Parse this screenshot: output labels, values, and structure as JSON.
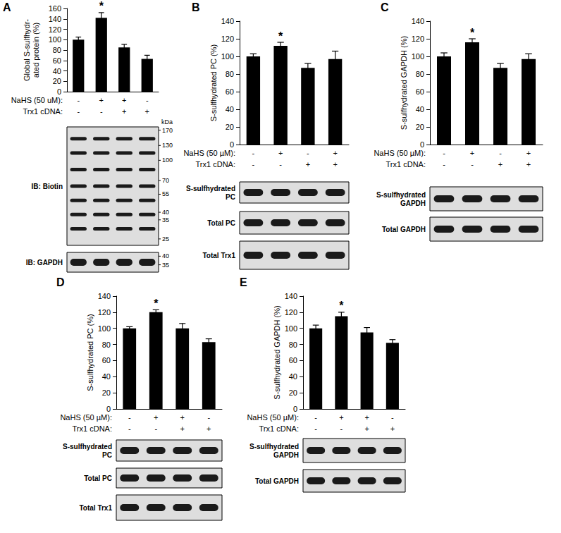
{
  "chart_data": [
    {
      "type": "bar",
      "panel_label": "A",
      "ylabel": "Global S-sulfhydr-\nated protein (%)",
      "categories": [
        null,
        null,
        null,
        null
      ],
      "values": [
        100,
        142,
        85,
        63
      ],
      "errors": [
        5,
        10,
        6,
        7
      ],
      "significance": [
        null,
        "*",
        null,
        null
      ],
      "color": "#000000",
      "ylim": [
        0,
        160
      ],
      "yticks": [
        0,
        20,
        40,
        60,
        80,
        100,
        120,
        140,
        160
      ],
      "grid": false,
      "tick_labels": "y",
      "treatments": [
        {
          "label": "NaHS (50 uM):",
          "values": [
            "-",
            "+",
            "+",
            "-"
          ]
        },
        {
          "label": "Trx1 cDNA:",
          "values": [
            "-",
            "-",
            "+",
            "+"
          ]
        }
      ],
      "ladder_unit": "kDa",
      "blots": [
        {
          "label": "IB: Biotin",
          "ladder": [
            170,
            130,
            100,
            70,
            55,
            40,
            35,
            25
          ]
        },
        {
          "label": "IB: GAPDH",
          "ladder": [
            40,
            35
          ]
        }
      ]
    },
    {
      "type": "bar",
      "panel_label": "B",
      "ylabel": "S-sulfhydrated PC (%)",
      "categories": [
        null,
        null,
        null,
        null
      ],
      "values": [
        100,
        112,
        87,
        97
      ],
      "errors": [
        3,
        4,
        5,
        9
      ],
      "significance": [
        null,
        "*",
        null,
        null
      ],
      "color": "#000000",
      "ylim": [
        0,
        140
      ],
      "yticks": [
        0,
        20,
        40,
        60,
        80,
        100,
        120,
        140
      ],
      "grid": false,
      "tick_labels": "y",
      "treatments": [
        {
          "label": "NaHS (50 µM):",
          "values": [
            "-",
            "+",
            "-",
            "+"
          ]
        },
        {
          "label": "Trx1 cDNA:",
          "values": [
            "-",
            "-",
            "+",
            "+"
          ]
        }
      ],
      "blots": [
        {
          "label": "S-sulfhydrated PC"
        },
        {
          "label": "Total PC"
        },
        {
          "label": "Total Trx1"
        }
      ]
    },
    {
      "type": "bar",
      "panel_label": "C",
      "ylabel": "S-sulfhydrated GAPDH (%)",
      "categories": [
        null,
        null,
        null,
        null
      ],
      "values": [
        100,
        116,
        87,
        97
      ],
      "errors": [
        4,
        4,
        5,
        6
      ],
      "significance": [
        null,
        "*",
        null,
        null
      ],
      "color": "#000000",
      "ylim": [
        0,
        140
      ],
      "yticks": [
        0,
        20,
        40,
        60,
        80,
        100,
        120,
        140
      ],
      "grid": false,
      "tick_labels": "y",
      "treatments": [
        {
          "label": "NaHS (50 µM):",
          "values": [
            "-",
            "+",
            "-",
            "+"
          ]
        },
        {
          "label": "Trx1 cDNA:",
          "values": [
            "-",
            "-",
            "+",
            "+"
          ]
        }
      ],
      "blots": [
        {
          "label": "S-sulfhydrated GAPDH"
        },
        {
          "label": "Total GAPDH"
        }
      ]
    },
    {
      "type": "bar",
      "panel_label": "D",
      "ylabel": "S-sulfhydrated PC (%)",
      "categories": [
        null,
        null,
        null,
        null
      ],
      "values": [
        100,
        120,
        100,
        83
      ],
      "errors": [
        2,
        3,
        6,
        4
      ],
      "significance": [
        null,
        "*",
        null,
        null
      ],
      "color": "#000000",
      "ylim": [
        0,
        140
      ],
      "yticks": [
        0,
        20,
        40,
        60,
        80,
        100,
        120,
        140
      ],
      "grid": false,
      "tick_labels": "y",
      "treatments": [
        {
          "label": "NaHS (50 µM):",
          "values": [
            "-",
            "+",
            "+",
            "-"
          ]
        },
        {
          "label": "Trx1 cDNA:",
          "values": [
            "-",
            "-",
            "+",
            "+"
          ]
        }
      ],
      "blots": [
        {
          "label": "S-sulfhydrated PC"
        },
        {
          "label": "Total PC"
        },
        {
          "label": "Total Trx1"
        }
      ]
    },
    {
      "type": "bar",
      "panel_label": "E",
      "ylabel": "S-sulfhydrated GAPDH (%)",
      "categories": [
        null,
        null,
        null,
        null
      ],
      "values": [
        100,
        115,
        95,
        82
      ],
      "errors": [
        4,
        5,
        6,
        4
      ],
      "significance": [
        null,
        "*",
        null,
        null
      ],
      "color": "#000000",
      "ylim": [
        0,
        140
      ],
      "yticks": [
        0,
        20,
        40,
        60,
        80,
        100,
        120,
        140
      ],
      "grid": false,
      "tick_labels": "y",
      "treatments": [
        {
          "label": "NaHS (50 µM):",
          "values": [
            "-",
            "+",
            "+",
            "-"
          ]
        },
        {
          "label": "Trx1 cDNA:",
          "values": [
            "-",
            "-",
            "+",
            "+"
          ]
        }
      ],
      "blots": [
        {
          "label": "S-sulfhydrated GAPDH"
        },
        {
          "label": "Total GAPDH"
        }
      ]
    }
  ]
}
